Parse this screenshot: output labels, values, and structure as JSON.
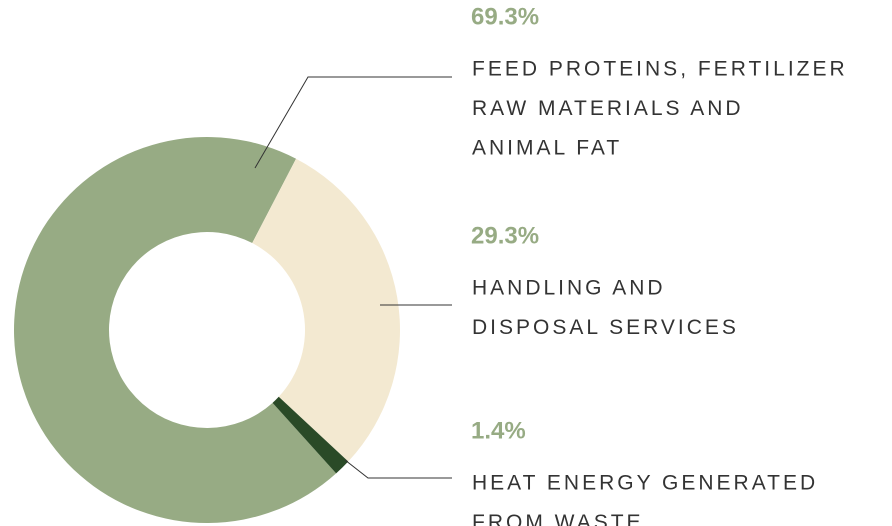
{
  "chart_data": {
    "type": "pie",
    "donut": true,
    "categories": [
      [
        "FEED PROTEINS, FERTILIZER",
        "RAW MATERIALS AND",
        "ANIMAL FAT"
      ],
      [
        "HANDLING AND",
        "DISPOSAL SERVICES"
      ],
      [
        "HEAT ENERGY GENERATED",
        "FROM WASTE"
      ]
    ],
    "values": [
      69.3,
      29.3,
      1.4
    ],
    "value_labels": [
      "69.3%",
      "29.3%",
      "1.4%"
    ],
    "colors": [
      "#97ab84",
      "#f3e9d1",
      "#2a4a27"
    ]
  }
}
